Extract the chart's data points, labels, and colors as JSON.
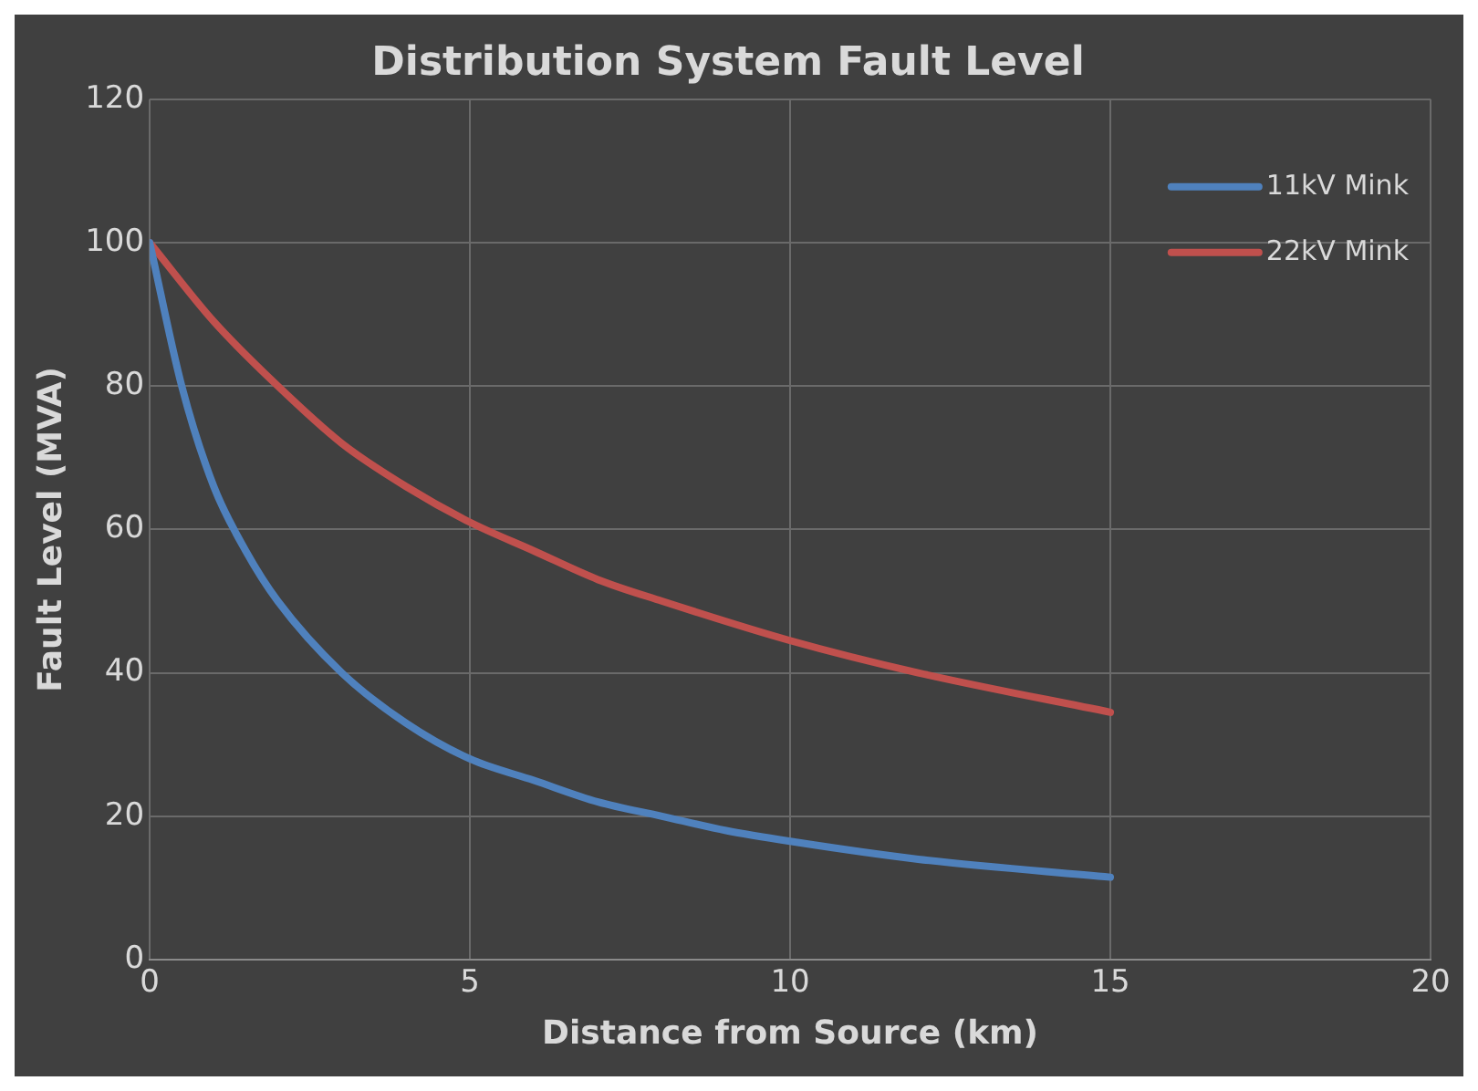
{
  "chart_data": {
    "type": "line",
    "title": "Distribution System Fault Level",
    "xlabel": "Distance from Source (km)",
    "ylabel": "Fault Level (MVA)",
    "xlim": [
      0,
      20
    ],
    "xticks": [
      0,
      5,
      10,
      15,
      20
    ],
    "ylim": [
      0,
      120
    ],
    "yticks": [
      0,
      20,
      40,
      60,
      80,
      100,
      120
    ],
    "grid": true,
    "legend": "top right",
    "marker": "none",
    "line_style": "solid",
    "series": [
      {
        "name": "11kV Mink",
        "color": "#4f81bd",
        "x": [
          0,
          0.5,
          1,
          1.5,
          2,
          3,
          4,
          5,
          6,
          7,
          8,
          9,
          10,
          12,
          15
        ],
        "values": [
          100,
          80,
          66,
          57,
          50,
          40,
          33,
          28,
          25,
          22,
          20,
          18,
          16.5,
          14,
          11.5
        ]
      },
      {
        "name": "22kV Mink",
        "color": "#c0504d",
        "x": [
          0,
          1,
          2,
          3,
          4,
          5,
          6,
          7,
          8,
          10,
          12,
          15
        ],
        "values": [
          100,
          89,
          80,
          72,
          66,
          61,
          57,
          53,
          50,
          44.5,
          40,
          34.5
        ]
      }
    ]
  }
}
